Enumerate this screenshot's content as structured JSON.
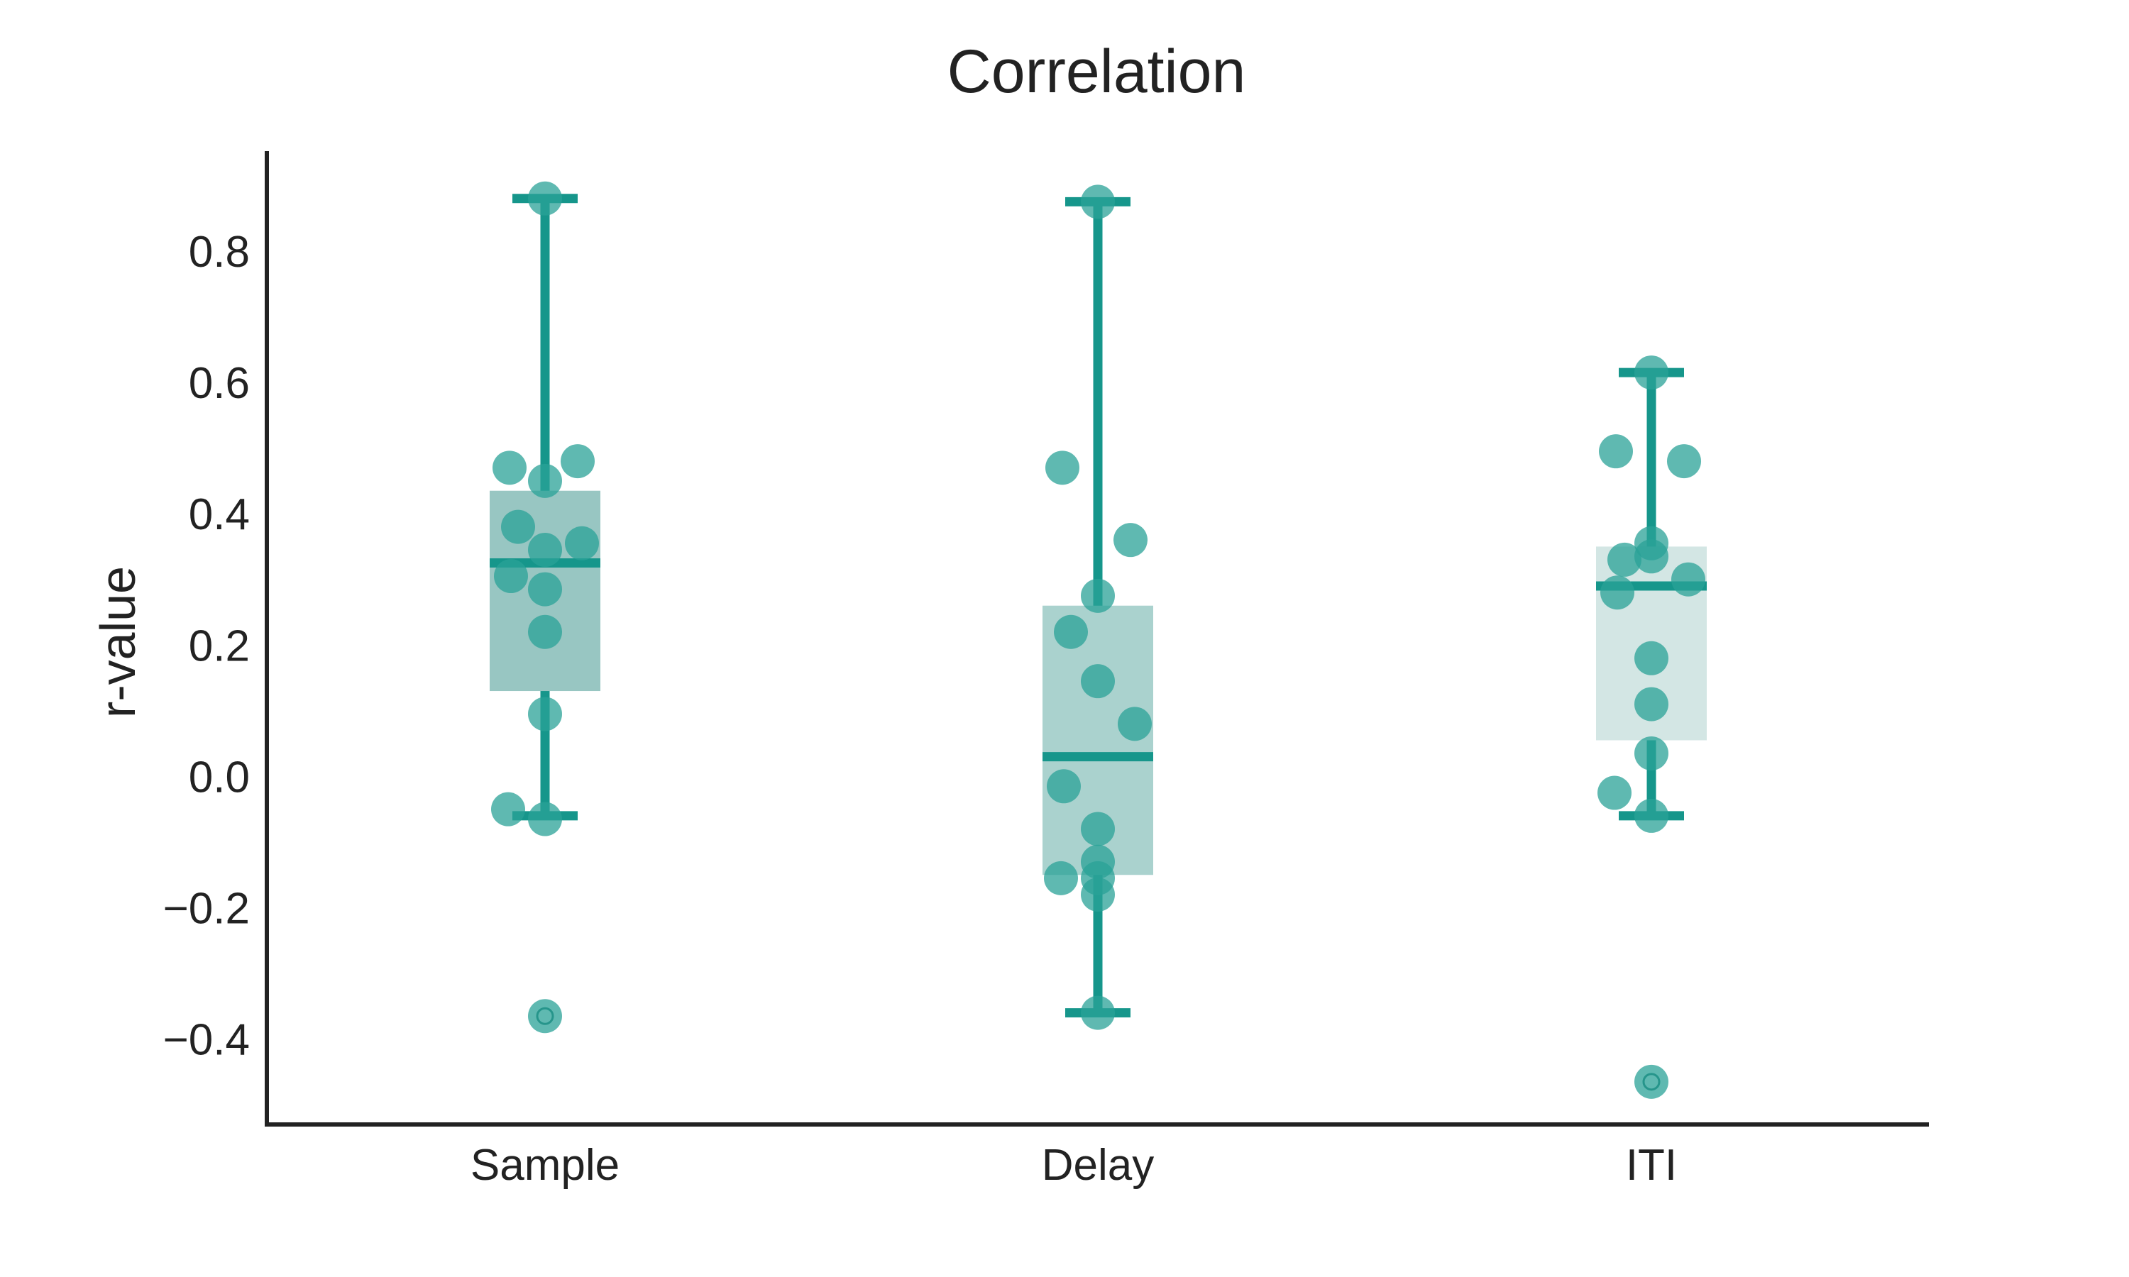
{
  "chart_data": {
    "type": "box",
    "title": "Correlation",
    "xlabel": "",
    "ylabel": "r-value",
    "ylim": [
      -0.53,
      0.95
    ],
    "yticks": [
      -0.4,
      -0.2,
      0.0,
      0.2,
      0.4,
      0.6,
      0.8
    ],
    "ytick_labels": [
      "−0.4",
      "−0.2",
      "0.0",
      "0.2",
      "0.4",
      "0.6",
      "0.8"
    ],
    "categories": [
      "Sample",
      "Delay",
      "ITI"
    ],
    "grid": false,
    "colors": {
      "accent": "#16968b",
      "point": "#2aa197",
      "box_fills": [
        "#98c6c2",
        "#aad2ce",
        "#d3e6e4"
      ],
      "axis": "#222222"
    },
    "boxes": [
      {
        "category": "Sample",
        "q1": 0.13,
        "median": 0.325,
        "q3": 0.435,
        "whisker_low": -0.06,
        "whisker_high": 0.88,
        "outliers": [
          -0.365
        ],
        "points": [
          0.88,
          0.47,
          0.48,
          0.45,
          0.38,
          0.345,
          0.355,
          0.305,
          0.285,
          0.22,
          0.095,
          -0.05,
          -0.065,
          -0.365
        ]
      },
      {
        "category": "Delay",
        "q1": -0.15,
        "median": 0.03,
        "q3": 0.26,
        "whisker_low": -0.36,
        "whisker_high": 0.875,
        "outliers": [],
        "points": [
          0.875,
          0.47,
          0.36,
          0.275,
          0.22,
          0.145,
          0.08,
          -0.015,
          -0.08,
          -0.13,
          -0.155,
          -0.155,
          -0.18,
          -0.36
        ]
      },
      {
        "category": "ITI",
        "q1": 0.055,
        "median": 0.29,
        "q3": 0.35,
        "whisker_low": -0.06,
        "whisker_high": 0.615,
        "outliers": [
          -0.465
        ],
        "points": [
          0.615,
          0.495,
          0.48,
          0.355,
          0.33,
          0.335,
          0.3,
          0.28,
          0.18,
          0.11,
          0.035,
          -0.025,
          -0.06,
          -0.465
        ]
      }
    ]
  }
}
